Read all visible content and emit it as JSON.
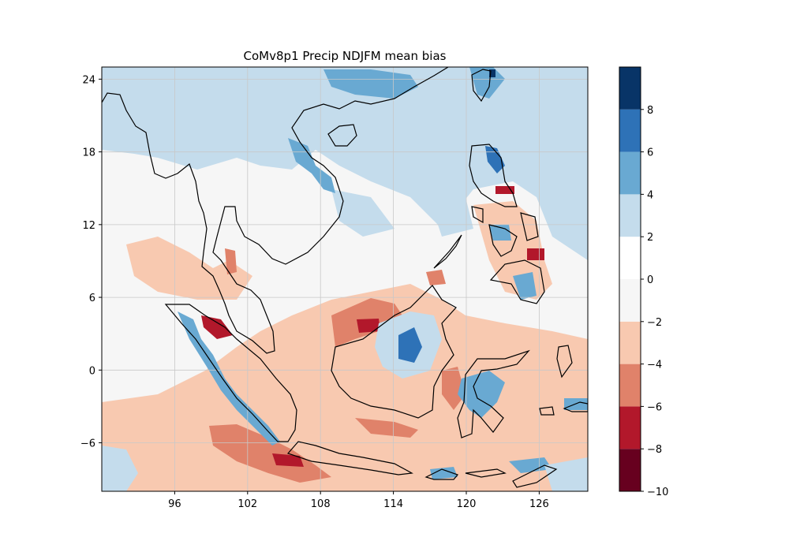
{
  "title": "CoMv8p1 Precip NDJFM mean bias",
  "map": {
    "lon_range": [
      90,
      130
    ],
    "lat_range": [
      -10,
      25
    ],
    "x_ticks": [
      {
        "value": 96,
        "label": "96"
      },
      {
        "value": 102,
        "label": "102"
      },
      {
        "value": 108,
        "label": "108"
      },
      {
        "value": 114,
        "label": "114"
      },
      {
        "value": 120,
        "label": "120"
      },
      {
        "value": 126,
        "label": "126"
      }
    ],
    "y_ticks": [
      {
        "value": -6,
        "label": "−6"
      },
      {
        "value": 0,
        "label": "0"
      },
      {
        "value": 6,
        "label": "6"
      },
      {
        "value": 12,
        "label": "12"
      },
      {
        "value": 18,
        "label": "18"
      },
      {
        "value": 24,
        "label": "24"
      }
    ],
    "grid": true,
    "coastlines": true
  },
  "colorbar": {
    "levels": [
      -10,
      -8,
      -6,
      -4,
      -2,
      0,
      2,
      4,
      6,
      8
    ],
    "labels": [
      "−10",
      "−8",
      "−6",
      "−4",
      "−2",
      "0",
      "2",
      "4",
      "6",
      "8"
    ],
    "colors": [
      "#67001f",
      "#b2182b",
      "#d6604d",
      "#f4a582",
      "#f7f7f7",
      "#ffffff",
      "#c6dbef",
      "#6baed6",
      "#2c6eb5",
      "#08306b"
    ],
    "band_colors": [
      "#67001f",
      "#b2182b",
      "#e0826a",
      "#f8c9b0",
      "#f6f6f6",
      "#ffffff",
      "#c4dcec",
      "#69a9d2",
      "#2e72b7",
      "#083467"
    ]
  }
}
